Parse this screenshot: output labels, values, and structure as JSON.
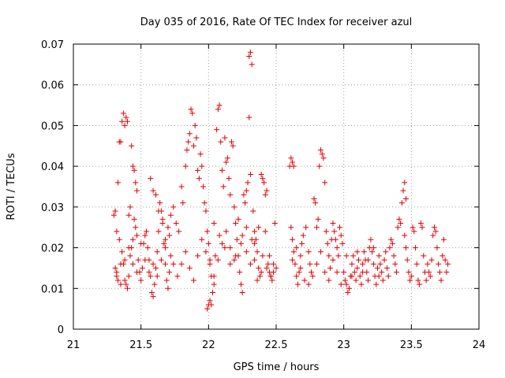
{
  "chart_data": {
    "type": "scatter",
    "title": "Day 035 of 2016, Rate Of TEC Index for receiver azul",
    "xlabel": "GPS time / hours",
    "ylabel": "ROTI / TECUs",
    "xlim": [
      21,
      24
    ],
    "ylim": [
      0,
      0.07
    ],
    "x_ticks": [
      "21",
      "21.5",
      "22",
      "22.5",
      "23",
      "23.5",
      "24"
    ],
    "y_ticks": [
      "0",
      "0.01",
      "0.02",
      "0.03",
      "0.04",
      "0.05",
      "0.06",
      "0.07"
    ],
    "grid": true,
    "marker": "plus",
    "color": "#e00000",
    "points": [
      [
        21.3,
        0.028
      ],
      [
        21.31,
        0.015
      ],
      [
        21.32,
        0.013
      ],
      [
        21.33,
        0.036
      ],
      [
        21.33,
        0.012
      ],
      [
        21.34,
        0.046
      ],
      [
        21.35,
        0.046
      ],
      [
        21.35,
        0.016
      ],
      [
        21.36,
        0.051
      ],
      [
        21.37,
        0.053
      ],
      [
        21.38,
        0.05
      ],
      [
        21.39,
        0.052
      ],
      [
        21.4,
        0.051
      ],
      [
        21.41,
        0.028
      ],
      [
        21.42,
        0.03
      ],
      [
        21.43,
        0.045
      ],
      [
        21.44,
        0.04
      ],
      [
        21.46,
        0.036
      ],
      [
        21.45,
        0.039
      ],
      [
        21.47,
        0.034
      ],
      [
        21.31,
        0.029
      ],
      [
        21.32,
        0.024
      ],
      [
        21.34,
        0.022
      ],
      [
        21.36,
        0.019
      ],
      [
        21.37,
        0.016
      ],
      [
        21.38,
        0.012
      ],
      [
        21.39,
        0.011
      ],
      [
        21.4,
        0.01
      ],
      [
        21.41,
        0.013
      ],
      [
        21.42,
        0.018
      ],
      [
        21.43,
        0.02
      ],
      [
        21.44,
        0.022
      ],
      [
        21.45,
        0.027
      ],
      [
        21.46,
        0.025
      ],
      [
        21.47,
        0.023
      ],
      [
        21.48,
        0.017
      ],
      [
        21.49,
        0.014
      ],
      [
        21.5,
        0.012
      ],
      [
        21.51,
        0.015
      ],
      [
        21.52,
        0.021
      ],
      [
        21.53,
        0.023
      ],
      [
        21.54,
        0.024
      ],
      [
        21.55,
        0.02
      ],
      [
        21.56,
        0.017
      ],
      [
        21.57,
        0.013
      ],
      [
        21.58,
        0.009
      ],
      [
        21.59,
        0.008
      ],
      [
        21.6,
        0.011
      ],
      [
        21.61,
        0.015
      ],
      [
        21.62,
        0.019
      ],
      [
        21.63,
        0.024
      ],
      [
        21.64,
        0.031
      ],
      [
        21.65,
        0.029
      ],
      [
        21.66,
        0.026
      ],
      [
        21.67,
        0.021
      ],
      [
        21.68,
        0.016
      ],
      [
        21.69,
        0.012
      ],
      [
        21.7,
        0.01
      ],
      [
        21.71,
        0.014
      ],
      [
        21.72,
        0.018
      ],
      [
        21.57,
        0.037
      ],
      [
        21.59,
        0.034
      ],
      [
        21.61,
        0.033
      ],
      [
        21.63,
        0.029
      ],
      [
        21.66,
        0.027
      ],
      [
        21.68,
        0.022
      ],
      [
        21.7,
        0.025
      ],
      [
        21.72,
        0.028
      ],
      [
        21.74,
        0.03
      ],
      [
        21.76,
        0.026
      ],
      [
        21.78,
        0.024
      ],
      [
        21.8,
        0.035
      ],
      [
        21.81,
        0.031
      ],
      [
        21.83,
        0.04
      ],
      [
        21.84,
        0.044
      ],
      [
        21.85,
        0.046
      ],
      [
        21.86,
        0.048
      ],
      [
        21.87,
        0.054
      ],
      [
        21.88,
        0.053
      ],
      [
        21.89,
        0.045
      ],
      [
        21.9,
        0.05
      ],
      [
        21.91,
        0.047
      ],
      [
        21.92,
        0.039
      ],
      [
        21.93,
        0.037
      ],
      [
        21.94,
        0.043
      ],
      [
        21.95,
        0.04
      ],
      [
        21.96,
        0.035
      ],
      [
        21.97,
        0.031
      ],
      [
        21.98,
        0.029
      ],
      [
        21.99,
        0.024
      ],
      [
        22.0,
        0.021
      ],
      [
        22.01,
        0.017
      ],
      [
        22.02,
        0.013
      ],
      [
        22.03,
        0.009
      ],
      [
        22.0,
        0.006
      ],
      [
        21.99,
        0.005
      ],
      [
        22.01,
        0.007
      ],
      [
        22.02,
        0.006
      ],
      [
        22.04,
        0.011
      ],
      [
        22.05,
        0.018
      ],
      [
        22.06,
        0.049
      ],
      [
        22.07,
        0.054
      ],
      [
        22.08,
        0.055
      ],
      [
        22.09,
        0.046
      ],
      [
        22.1,
        0.039
      ],
      [
        22.11,
        0.035
      ],
      [
        22.12,
        0.047
      ],
      [
        22.13,
        0.041
      ],
      [
        22.14,
        0.042
      ],
      [
        22.15,
        0.037
      ],
      [
        22.16,
        0.033
      ],
      [
        22.17,
        0.046
      ],
      [
        22.18,
        0.045
      ],
      [
        22.19,
        0.03
      ],
      [
        22.2,
        0.026
      ],
      [
        22.21,
        0.022
      ],
      [
        22.22,
        0.018
      ],
      [
        22.23,
        0.014
      ],
      [
        22.24,
        0.011
      ],
      [
        22.25,
        0.009
      ],
      [
        22.26,
        0.033
      ],
      [
        22.27,
        0.031
      ],
      [
        22.28,
        0.034
      ],
      [
        22.29,
        0.036
      ],
      [
        22.3,
        0.067
      ],
      [
        22.31,
        0.068
      ],
      [
        22.32,
        0.065
      ],
      [
        22.3,
        0.052
      ],
      [
        22.31,
        0.038
      ],
      [
        22.33,
        0.029
      ],
      [
        22.34,
        0.024
      ],
      [
        22.35,
        0.022
      ],
      [
        22.36,
        0.019
      ],
      [
        22.37,
        0.015
      ],
      [
        22.38,
        0.013
      ],
      [
        22.39,
        0.038
      ],
      [
        22.4,
        0.037
      ],
      [
        22.41,
        0.036
      ],
      [
        22.42,
        0.033
      ],
      [
        22.43,
        0.034
      ],
      [
        22.44,
        0.016
      ],
      [
        22.45,
        0.014
      ],
      [
        22.46,
        0.013
      ],
      [
        22.47,
        0.012
      ],
      [
        22.48,
        0.016
      ],
      [
        22.49,
        0.026
      ],
      [
        22.5,
        0.015
      ],
      [
        22.45,
        0.018
      ],
      [
        22.42,
        0.024
      ],
      [
        22.39,
        0.014
      ],
      [
        22.36,
        0.012
      ],
      [
        22.34,
        0.017
      ],
      [
        22.32,
        0.022
      ],
      [
        22.28,
        0.025
      ],
      [
        22.24,
        0.021
      ],
      [
        22.2,
        0.018
      ],
      [
        22.16,
        0.016
      ],
      [
        22.12,
        0.02
      ],
      [
        22.08,
        0.023
      ],
      [
        22.04,
        0.026
      ],
      [
        22.6,
        0.04
      ],
      [
        22.61,
        0.042
      ],
      [
        22.62,
        0.041
      ],
      [
        22.63,
        0.04
      ],
      [
        22.61,
        0.025
      ],
      [
        22.62,
        0.022
      ],
      [
        22.63,
        0.019
      ],
      [
        22.64,
        0.016
      ],
      [
        22.65,
        0.013
      ],
      [
        22.66,
        0.011
      ],
      [
        22.67,
        0.014
      ],
      [
        22.68,
        0.018
      ],
      [
        22.69,
        0.021
      ],
      [
        22.7,
        0.023
      ],
      [
        22.72,
        0.025
      ],
      [
        22.74,
        0.019
      ],
      [
        22.75,
        0.016
      ],
      [
        22.76,
        0.014
      ],
      [
        22.78,
        0.032
      ],
      [
        22.79,
        0.031
      ],
      [
        22.8,
        0.025
      ],
      [
        22.81,
        0.027
      ],
      [
        22.82,
        0.04
      ],
      [
        22.83,
        0.044
      ],
      [
        22.84,
        0.043
      ],
      [
        22.85,
        0.042
      ],
      [
        22.86,
        0.036
      ],
      [
        22.87,
        0.024
      ],
      [
        22.88,
        0.021
      ],
      [
        22.89,
        0.018
      ],
      [
        22.9,
        0.015
      ],
      [
        22.91,
        0.022
      ],
      [
        22.92,
        0.026
      ],
      [
        22.93,
        0.024
      ],
      [
        22.94,
        0.022
      ],
      [
        22.95,
        0.02
      ],
      [
        22.96,
        0.018
      ],
      [
        22.97,
        0.025
      ],
      [
        22.98,
        0.023
      ],
      [
        22.99,
        0.021
      ],
      [
        23.0,
        0.014
      ],
      [
        23.01,
        0.012
      ],
      [
        23.02,
        0.011
      ],
      [
        23.03,
        0.009
      ],
      [
        23.04,
        0.01
      ],
      [
        23.05,
        0.013
      ],
      [
        23.06,
        0.016
      ],
      [
        23.07,
        0.018
      ],
      [
        23.08,
        0.014
      ],
      [
        23.09,
        0.012
      ],
      [
        23.1,
        0.015
      ],
      [
        23.11,
        0.017
      ],
      [
        23.12,
        0.013
      ],
      [
        23.13,
        0.011
      ],
      [
        23.14,
        0.016
      ],
      [
        23.15,
        0.019
      ],
      [
        23.16,
        0.017
      ],
      [
        23.17,
        0.014
      ],
      [
        23.18,
        0.012
      ],
      [
        23.19,
        0.02
      ],
      [
        23.2,
        0.022
      ],
      [
        23.21,
        0.019
      ],
      [
        23.22,
        0.016
      ],
      [
        23.23,
        0.013
      ],
      [
        23.24,
        0.011
      ],
      [
        23.25,
        0.015
      ],
      [
        23.26,
        0.018
      ],
      [
        23.27,
        0.016
      ],
      [
        23.28,
        0.014
      ],
      [
        23.29,
        0.012
      ],
      [
        23.3,
        0.017
      ],
      [
        23.31,
        0.019
      ],
      [
        23.32,
        0.015
      ],
      [
        23.33,
        0.013
      ],
      [
        23.34,
        0.02
      ],
      [
        23.35,
        0.022
      ],
      [
        23.36,
        0.021
      ],
      [
        23.37,
        0.018
      ],
      [
        23.38,
        0.016
      ],
      [
        23.39,
        0.014
      ],
      [
        23.4,
        0.025
      ],
      [
        23.41,
        0.027
      ],
      [
        23.42,
        0.026
      ],
      [
        23.43,
        0.031
      ],
      [
        23.44,
        0.034
      ],
      [
        23.45,
        0.036
      ],
      [
        23.46,
        0.032
      ],
      [
        23.45,
        0.023
      ],
      [
        23.46,
        0.02
      ],
      [
        23.47,
        0.017
      ],
      [
        23.48,
        0.014
      ],
      [
        23.49,
        0.012
      ],
      [
        23.5,
        0.013
      ],
      [
        23.51,
        0.025
      ],
      [
        23.52,
        0.024
      ],
      [
        23.53,
        0.02
      ],
      [
        23.54,
        0.016
      ],
      [
        23.55,
        0.012
      ],
      [
        23.56,
        0.011
      ],
      [
        23.57,
        0.026
      ],
      [
        23.58,
        0.025
      ],
      [
        23.59,
        0.018
      ],
      [
        23.6,
        0.014
      ],
      [
        23.61,
        0.012
      ],
      [
        23.62,
        0.016
      ],
      [
        23.63,
        0.014
      ],
      [
        23.64,
        0.013
      ],
      [
        23.65,
        0.017
      ],
      [
        23.66,
        0.023
      ],
      [
        23.67,
        0.025
      ],
      [
        23.68,
        0.024
      ],
      [
        23.69,
        0.02
      ],
      [
        23.7,
        0.016
      ],
      [
        23.71,
        0.014
      ],
      [
        23.72,
        0.012
      ],
      [
        23.73,
        0.018
      ],
      [
        23.74,
        0.022
      ],
      [
        23.75,
        0.017
      ],
      [
        23.76,
        0.014
      ],
      [
        23.77,
        0.016
      ],
      [
        21.32,
        0.014
      ],
      [
        21.35,
        0.011
      ],
      [
        21.38,
        0.017
      ],
      [
        21.41,
        0.02
      ],
      [
        21.44,
        0.016
      ],
      [
        21.47,
        0.014
      ],
      [
        21.5,
        0.021
      ],
      [
        21.53,
        0.017
      ],
      [
        21.56,
        0.014
      ],
      [
        21.59,
        0.016
      ],
      [
        21.62,
        0.013
      ],
      [
        21.65,
        0.017
      ],
      [
        21.68,
        0.02
      ],
      [
        21.71,
        0.023
      ],
      [
        21.74,
        0.016
      ],
      [
        21.77,
        0.013
      ],
      [
        21.8,
        0.016
      ],
      [
        21.83,
        0.019
      ],
      [
        21.86,
        0.015
      ],
      [
        21.89,
        0.012
      ],
      [
        21.92,
        0.018
      ],
      [
        21.95,
        0.022
      ],
      [
        21.98,
        0.019
      ],
      [
        22.01,
        0.016
      ],
      [
        22.04,
        0.013
      ],
      [
        22.07,
        0.017
      ],
      [
        22.1,
        0.021
      ],
      [
        22.13,
        0.024
      ],
      [
        22.16,
        0.02
      ],
      [
        22.19,
        0.017
      ],
      [
        22.22,
        0.027
      ],
      [
        22.25,
        0.023
      ],
      [
        22.28,
        0.019
      ],
      [
        22.31,
        0.016
      ],
      [
        22.34,
        0.021
      ],
      [
        22.37,
        0.025
      ],
      [
        22.4,
        0.018
      ],
      [
        22.43,
        0.015
      ],
      [
        22.46,
        0.013
      ],
      [
        22.48,
        0.014
      ],
      [
        22.62,
        0.017
      ],
      [
        22.65,
        0.02
      ],
      [
        22.68,
        0.015
      ],
      [
        22.71,
        0.012
      ],
      [
        22.74,
        0.011
      ],
      [
        22.77,
        0.013
      ],
      [
        22.8,
        0.016
      ],
      [
        22.83,
        0.019
      ],
      [
        22.86,
        0.014
      ],
      [
        22.89,
        0.012
      ],
      [
        22.92,
        0.017
      ],
      [
        22.95,
        0.014
      ],
      [
        22.98,
        0.011
      ],
      [
        23.02,
        0.018
      ],
      [
        23.06,
        0.013
      ],
      [
        23.1,
        0.019
      ],
      [
        23.14,
        0.014
      ],
      [
        23.18,
        0.017
      ],
      [
        23.22,
        0.02
      ],
      [
        23.26,
        0.013
      ]
    ]
  }
}
